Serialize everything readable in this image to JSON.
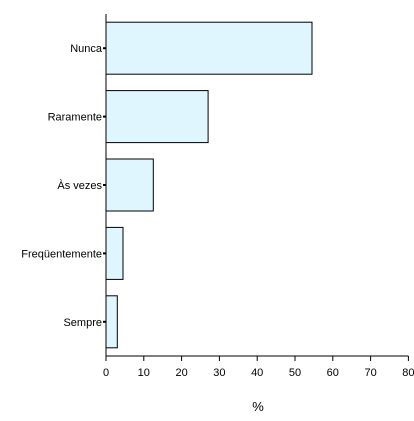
{
  "chart_data": {
    "type": "bar",
    "orientation": "horizontal",
    "categories": [
      "Nunca",
      "Raramente",
      "Às vezes",
      "Freqüentemente",
      "Sempre"
    ],
    "values": [
      54.5,
      27,
      12.5,
      4.5,
      3
    ],
    "title": "",
    "xlabel": "%",
    "ylabel": "",
    "xlim": [
      0,
      80
    ],
    "xticks": [
      0,
      10,
      20,
      30,
      40,
      50,
      60,
      70,
      80
    ],
    "grid": false,
    "legend": "none",
    "colors": {
      "bar_fill": "#dff6ff",
      "bar_stroke": "#000000",
      "axis": "#000000"
    }
  }
}
